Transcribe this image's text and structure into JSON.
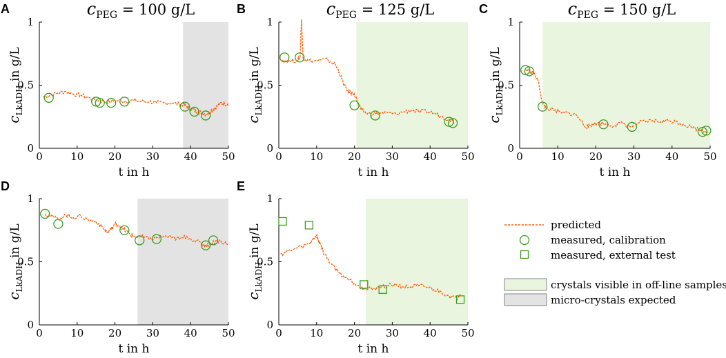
{
  "figure": {
    "legend": {
      "predicted": "predicted",
      "calibration": "measured, calibration",
      "external": "measured, external test",
      "crystals": "crystals visible in off-line samples",
      "micro": "micro-crystals expected"
    }
  },
  "colors": {
    "predicted": "#ff5a00",
    "measured": "#3a9c1e",
    "crystal_shade": "#eaf5df",
    "micro_shade": "#e3e3e3"
  },
  "chart_data": [
    {
      "panel": "A",
      "type": "line",
      "title_main": "c",
      "title_sub": "PEG",
      "title_rest": " = 100 g/L",
      "xlabel": "t in h",
      "ylabel_main": "c",
      "ylabel_sub": "LkADH",
      "ylabel_rest": " in g/L",
      "xlim": [
        0,
        50
      ],
      "ylim": [
        0,
        1
      ],
      "xticks": [
        "0",
        "10",
        "20",
        "30",
        "40",
        "50"
      ],
      "yticks": [
        "0",
        "0.5",
        "1"
      ],
      "shade": {
        "kind": "micro",
        "from": 38,
        "to": 50
      },
      "predicted": {
        "x": [
          1,
          3,
          5,
          7,
          9,
          11,
          13,
          15,
          17,
          19,
          21,
          23,
          25,
          27,
          29,
          31,
          33,
          35,
          37,
          38,
          39,
          40,
          41,
          42,
          43,
          44,
          45,
          46,
          47,
          48,
          49,
          50
        ],
        "y": [
          0.41,
          0.42,
          0.44,
          0.45,
          0.43,
          0.42,
          0.4,
          0.38,
          0.37,
          0.37,
          0.38,
          0.37,
          0.38,
          0.37,
          0.37,
          0.36,
          0.36,
          0.36,
          0.35,
          0.35,
          0.33,
          0.31,
          0.3,
          0.29,
          0.28,
          0.27,
          0.29,
          0.31,
          0.33,
          0.36,
          0.35,
          0.36
        ]
      },
      "calibration": {
        "x": [
          2.5,
          15,
          16,
          19,
          22.5,
          38.5,
          41,
          44
        ],
        "y": [
          0.4,
          0.37,
          0.36,
          0.36,
          0.37,
          0.33,
          0.29,
          0.26
        ]
      },
      "external": {
        "x": [],
        "y": []
      }
    },
    {
      "panel": "B",
      "type": "line",
      "title_main": "c",
      "title_sub": "PEG",
      "title_rest": " = 125 g/L",
      "xlabel": "t in h",
      "ylabel_main": "c",
      "ylabel_sub": "LkADH",
      "ylabel_rest": " in g/L",
      "xlim": [
        0,
        50
      ],
      "ylim": [
        0,
        1
      ],
      "xticks": [
        "0",
        "10",
        "20",
        "30",
        "40",
        "50"
      ],
      "yticks": [
        "0",
        "0.5",
        "1"
      ],
      "shade": {
        "kind": "crystals",
        "from": 20.5,
        "to": 50
      },
      "predicted": {
        "x": [
          1,
          3,
          5,
          5.6,
          6,
          6.4,
          7,
          9,
          11,
          13,
          15,
          16,
          17,
          18,
          19,
          20,
          21,
          22,
          23,
          25,
          27,
          29,
          31,
          33,
          35,
          37,
          39,
          41,
          43,
          45,
          46.5
        ],
        "y": [
          0.7,
          0.69,
          0.7,
          0.72,
          1.02,
          0.72,
          0.7,
          0.69,
          0.7,
          0.7,
          0.66,
          0.6,
          0.52,
          0.46,
          0.44,
          0.43,
          0.35,
          0.3,
          0.28,
          0.27,
          0.28,
          0.28,
          0.27,
          0.29,
          0.3,
          0.29,
          0.29,
          0.28,
          0.25,
          0.23,
          0.21
        ]
      },
      "calibration": {
        "x": [
          1.5,
          5.5,
          20,
          25.5,
          45,
          46
        ],
        "y": [
          0.72,
          0.72,
          0.34,
          0.26,
          0.21,
          0.2
        ]
      },
      "external": {
        "x": [],
        "y": []
      }
    },
    {
      "panel": "C",
      "type": "line",
      "title_main": "c",
      "title_sub": "PEG",
      "title_rest": " = 150 g/L",
      "xlabel": "t in h",
      "ylabel_main": "c",
      "ylabel_sub": "LkADH",
      "ylabel_rest": " in g/L",
      "xlim": [
        0,
        50
      ],
      "ylim": [
        0,
        1
      ],
      "xticks": [
        "0",
        "10",
        "20",
        "30",
        "40",
        "50"
      ],
      "yticks": [
        "0",
        "0.5",
        "1"
      ],
      "shade": {
        "kind": "crystals",
        "from": 6,
        "to": 50
      },
      "predicted": {
        "x": [
          1.5,
          3,
          4,
          5,
          6,
          7,
          9,
          11,
          13,
          15,
          17,
          18,
          19,
          21,
          23,
          25,
          27,
          29,
          31,
          33,
          35,
          37,
          39,
          41,
          43,
          45,
          47,
          49.5
        ],
        "y": [
          0.62,
          0.61,
          0.58,
          0.52,
          0.35,
          0.32,
          0.3,
          0.28,
          0.28,
          0.26,
          0.18,
          0.17,
          0.19,
          0.2,
          0.19,
          0.18,
          0.2,
          0.17,
          0.2,
          0.21,
          0.22,
          0.21,
          0.22,
          0.21,
          0.19,
          0.17,
          0.15,
          0.13
        ]
      },
      "calibration": {
        "x": [
          1.5,
          2.5,
          6,
          22,
          29.5,
          48,
          49
        ],
        "y": [
          0.62,
          0.61,
          0.33,
          0.19,
          0.17,
          0.13,
          0.14
        ]
      },
      "external": {
        "x": [],
        "y": []
      }
    },
    {
      "panel": "D",
      "type": "line",
      "title_main": "",
      "title_sub": "",
      "title_rest": "",
      "xlabel": "t in h",
      "ylabel_main": "c",
      "ylabel_sub": "LkADH",
      "ylabel_rest": " in g/L",
      "xlim": [
        0,
        50
      ],
      "ylim": [
        0,
        1
      ],
      "xticks": [
        "0",
        "10",
        "20",
        "30",
        "40",
        "50"
      ],
      "yticks": [
        "0",
        "0.5",
        "1"
      ],
      "shade": {
        "kind": "micro",
        "from": 26,
        "to": 50
      },
      "predicted": {
        "x": [
          1.5,
          3,
          5,
          7,
          9,
          11,
          13,
          15,
          17,
          18,
          19,
          20,
          21,
          22,
          23,
          24,
          25,
          27,
          29,
          31,
          33,
          35,
          37,
          39,
          41,
          43,
          44,
          45,
          47,
          49,
          50
        ],
        "y": [
          0.88,
          0.86,
          0.84,
          0.87,
          0.85,
          0.86,
          0.83,
          0.82,
          0.76,
          0.73,
          0.76,
          0.8,
          0.79,
          0.76,
          0.74,
          0.72,
          0.7,
          0.7,
          0.68,
          0.69,
          0.7,
          0.69,
          0.68,
          0.7,
          0.67,
          0.64,
          0.63,
          0.64,
          0.67,
          0.65,
          0.63
        ]
      },
      "calibration": {
        "x": [
          1.5,
          5,
          22.5,
          26.5,
          31,
          44,
          46
        ],
        "y": [
          0.88,
          0.8,
          0.75,
          0.67,
          0.68,
          0.63,
          0.67
        ]
      },
      "external": {
        "x": [],
        "y": []
      }
    },
    {
      "panel": "E",
      "type": "line",
      "title_main": "",
      "title_sub": "",
      "title_rest": "",
      "xlabel": "t in h",
      "ylabel_main": "c",
      "ylabel_sub": "LkADH",
      "ylabel_rest": " in g/L",
      "xlim": [
        0,
        50
      ],
      "ylim": [
        0,
        1
      ],
      "xticks": [
        "0",
        "10",
        "20",
        "30",
        "40",
        "50"
      ],
      "yticks": [
        "0",
        "0.5",
        "1"
      ],
      "shade": {
        "kind": "crystals",
        "from": 23,
        "to": 50
      },
      "predicted": {
        "x": [
          0.5,
          2,
          4,
          6,
          8,
          9,
          10,
          10.5,
          11,
          12,
          14,
          16,
          18,
          20,
          22,
          23,
          25,
          27,
          29,
          31,
          33,
          35,
          37,
          39,
          41,
          43,
          45,
          47,
          48
        ],
        "y": [
          0.56,
          0.58,
          0.6,
          0.62,
          0.64,
          0.68,
          0.71,
          0.66,
          0.64,
          0.56,
          0.48,
          0.41,
          0.37,
          0.33,
          0.3,
          0.28,
          0.29,
          0.3,
          0.31,
          0.32,
          0.3,
          0.3,
          0.31,
          0.3,
          0.28,
          0.26,
          0.23,
          0.21,
          0.25
        ]
      },
      "calibration": {
        "x": [],
        "y": []
      },
      "external": {
        "x": [
          1,
          8,
          22.5,
          27.5,
          48
        ],
        "y": [
          0.82,
          0.79,
          0.32,
          0.28,
          0.2
        ]
      }
    }
  ]
}
